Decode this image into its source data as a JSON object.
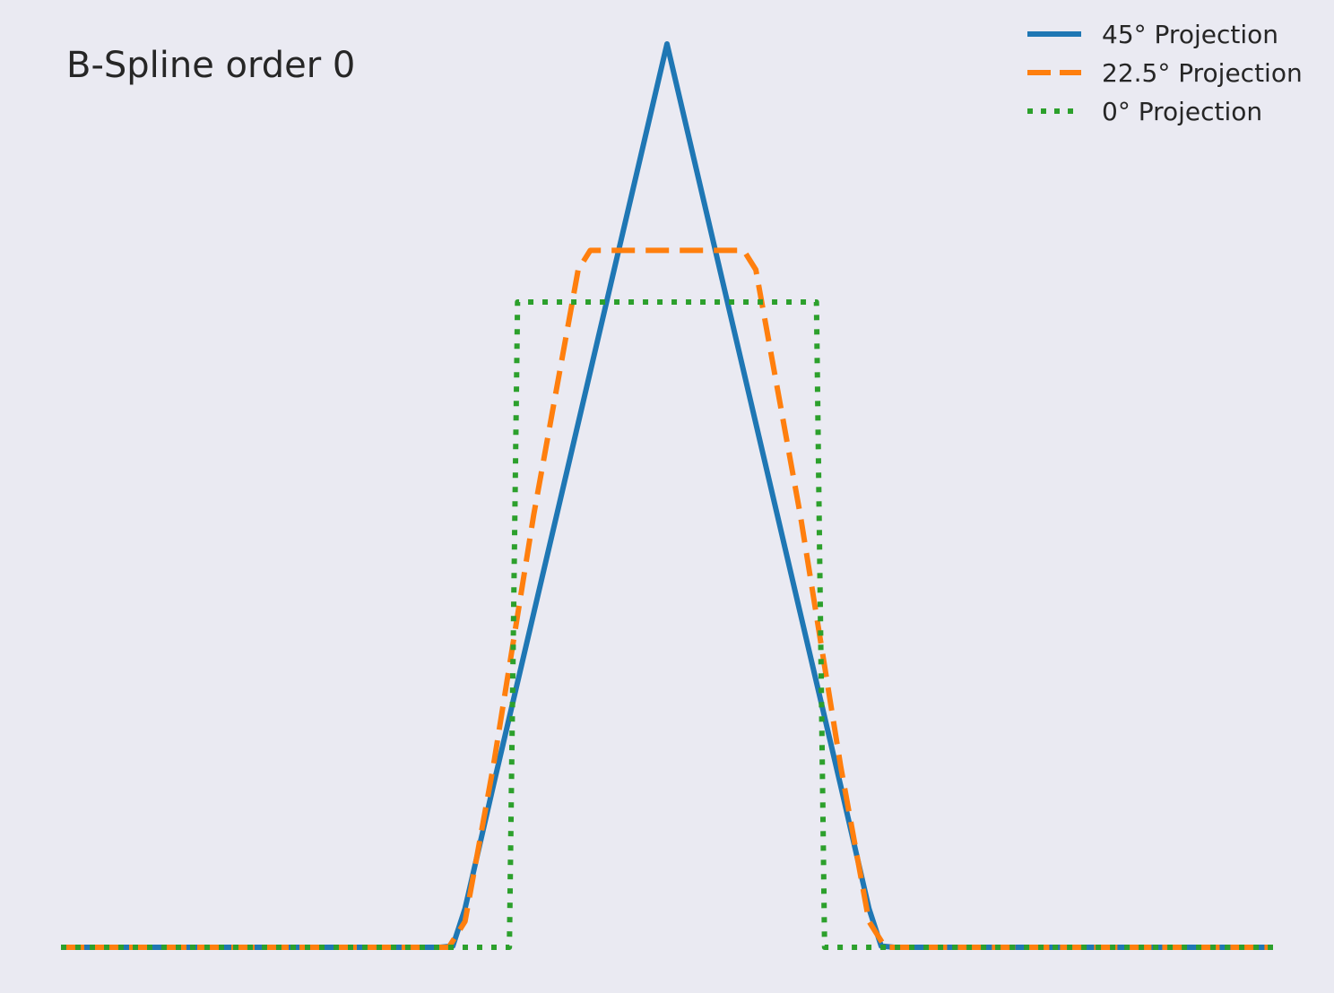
{
  "chart_data": {
    "type": "line",
    "title": "",
    "xlabel": "",
    "ylabel": "",
    "annotation": "B-Spline order 0",
    "xlim": [
      -1.5,
      1.5
    ],
    "ylim": [
      -0.02,
      1.42
    ],
    "grid": false,
    "legend_position": "top-right",
    "series": [
      {
        "name": "45° Projection",
        "color": "#1f77b4",
        "style": "solid",
        "points": [
          [
            -1.5,
            0
          ],
          [
            -0.5625,
            0
          ],
          [
            -0.53,
            0.002
          ],
          [
            -0.5,
            0.06
          ],
          [
            -0.43,
            0.25
          ],
          [
            0,
            1.4
          ],
          [
            0.43,
            0.25
          ],
          [
            0.5,
            0.06
          ],
          [
            0.53,
            0.002
          ],
          [
            0.5625,
            0
          ],
          [
            1.5,
            0
          ]
        ]
      },
      {
        "name": "22.5° Projection",
        "color": "#ff7f0e",
        "style": "dashed",
        "points": [
          [
            -1.5,
            0
          ],
          [
            -0.54,
            0
          ],
          [
            -0.5,
            0.04
          ],
          [
            -0.43,
            0.28
          ],
          [
            -0.33,
            0.67
          ],
          [
            -0.22,
            1.05
          ],
          [
            -0.19,
            1.08
          ],
          [
            0.19,
            1.08
          ],
          [
            0.22,
            1.05
          ],
          [
            0.33,
            0.67
          ],
          [
            0.43,
            0.28
          ],
          [
            0.5,
            0.04
          ],
          [
            0.54,
            0
          ],
          [
            1.5,
            0
          ]
        ]
      },
      {
        "name": "0° Projection",
        "color": "#2ca02c",
        "style": "dotted",
        "points": [
          [
            -1.5,
            0
          ],
          [
            -0.39,
            0
          ],
          [
            -0.37,
            1.0
          ],
          [
            0.37,
            1.0
          ],
          [
            0.39,
            0
          ],
          [
            1.5,
            0
          ]
        ]
      }
    ]
  }
}
